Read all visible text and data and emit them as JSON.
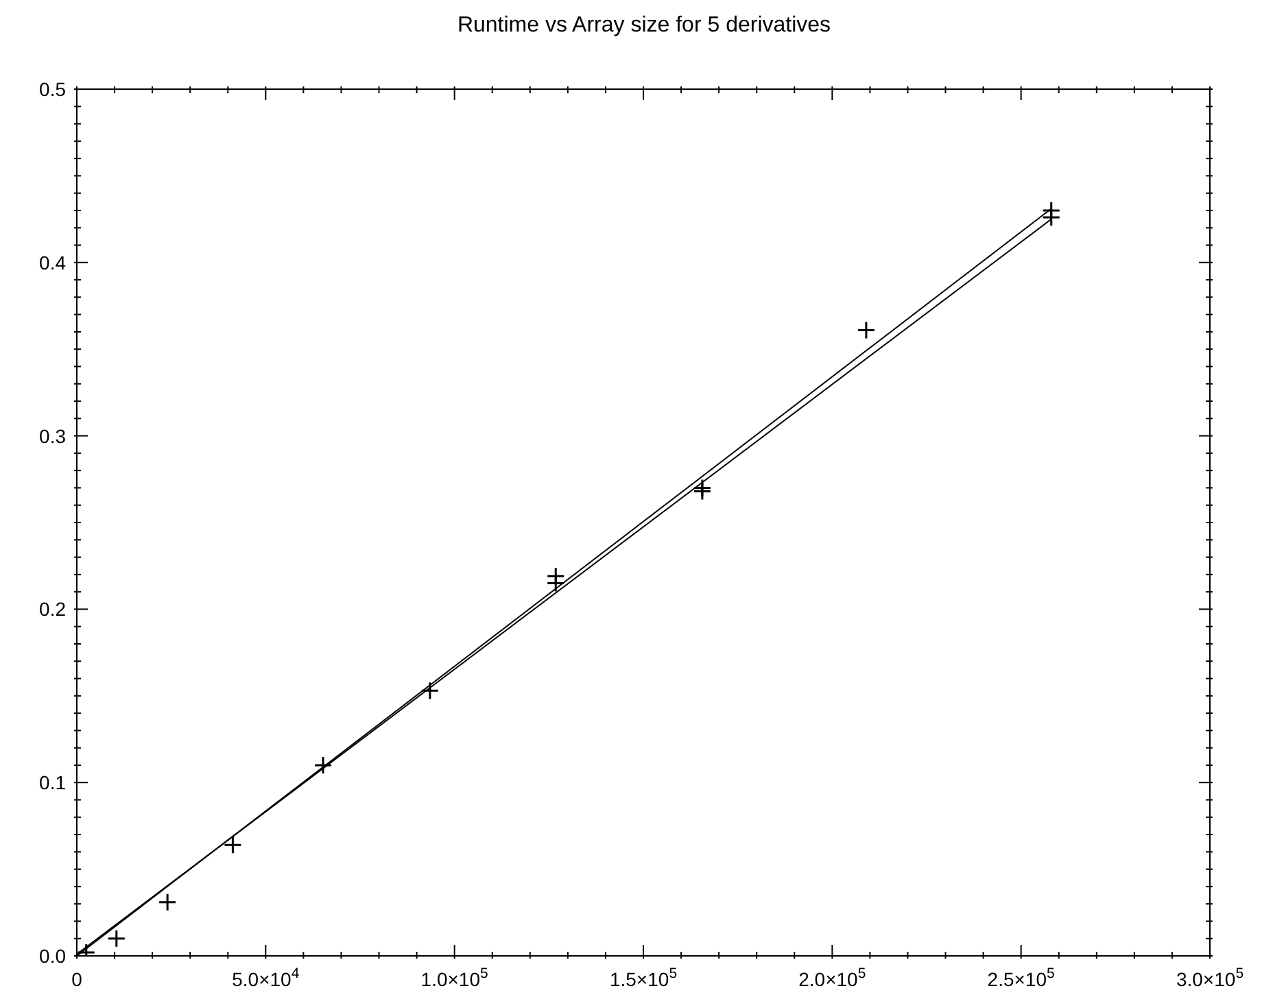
{
  "chart_data": {
    "type": "scatter",
    "title": "Runtime vs Array size for 5 derivatives",
    "xlim": [
      0,
      300000
    ],
    "xticks": [
      {
        "value": 0,
        "label": "0"
      },
      {
        "value": 10000,
        "label": null
      },
      {
        "value": 20000,
        "label": null
      },
      {
        "value": 30000,
        "label": null
      },
      {
        "value": 40000,
        "label": null
      },
      {
        "value": 50000,
        "label": "5.0×10$^{4}$"
      },
      {
        "value": 60000,
        "label": null
      },
      {
        "value": 70000,
        "label": null
      },
      {
        "value": 80000,
        "label": null
      },
      {
        "value": 90000,
        "label": null
      },
      {
        "value": 100000,
        "label": "1.0×10$^{5}$"
      },
      {
        "value": 110000,
        "label": null
      },
      {
        "value": 120000,
        "label": null
      },
      {
        "value": 130000,
        "label": null
      },
      {
        "value": 140000,
        "label": null
      },
      {
        "value": 150000,
        "label": "1.5×10$^{5}$"
      },
      {
        "value": 160000,
        "label": null
      },
      {
        "value": 170000,
        "label": null
      },
      {
        "value": 180000,
        "label": null
      },
      {
        "value": 190000,
        "label": null
      },
      {
        "value": 200000,
        "label": "2.0×10$^{5}$"
      },
      {
        "value": 210000,
        "label": null
      },
      {
        "value": 220000,
        "label": null
      },
      {
        "value": 230000,
        "label": null
      },
      {
        "value": 240000,
        "label": null
      },
      {
        "value": 250000,
        "label": "2.5×10$^{5}$"
      },
      {
        "value": 260000,
        "label": null
      },
      {
        "value": 270000,
        "label": null
      },
      {
        "value": 280000,
        "label": null
      },
      {
        "value": 290000,
        "label": null
      },
      {
        "value": 300000,
        "label": "3.0×10$^{5}$"
      }
    ],
    "ylim": [
      0,
      0.5
    ],
    "yticks": [
      {
        "value": 0,
        "label": "0.0"
      },
      {
        "value": 0.01,
        "label": null
      },
      {
        "value": 0.02,
        "label": null
      },
      {
        "value": 0.03,
        "label": null
      },
      {
        "value": 0.04,
        "label": null
      },
      {
        "value": 0.05,
        "label": null
      },
      {
        "value": 0.06,
        "label": null
      },
      {
        "value": 0.07,
        "label": null
      },
      {
        "value": 0.08,
        "label": null
      },
      {
        "value": 0.09,
        "label": null
      },
      {
        "value": 0.1,
        "label": "0.1"
      },
      {
        "value": 0.11,
        "label": null
      },
      {
        "value": 0.12,
        "label": null
      },
      {
        "value": 0.13,
        "label": null
      },
      {
        "value": 0.14,
        "label": null
      },
      {
        "value": 0.15,
        "label": null
      },
      {
        "value": 0.16,
        "label": null
      },
      {
        "value": 0.17,
        "label": null
      },
      {
        "value": 0.18,
        "label": null
      },
      {
        "value": 0.19,
        "label": null
      },
      {
        "value": 0.2,
        "label": "0.2"
      },
      {
        "value": 0.21,
        "label": null
      },
      {
        "value": 0.22,
        "label": null
      },
      {
        "value": 0.23,
        "label": null
      },
      {
        "value": 0.24,
        "label": null
      },
      {
        "value": 0.25,
        "label": null
      },
      {
        "value": 0.26,
        "label": null
      },
      {
        "value": 0.27,
        "label": null
      },
      {
        "value": 0.28,
        "label": null
      },
      {
        "value": 0.29,
        "label": null
      },
      {
        "value": 0.3,
        "label": "0.3"
      },
      {
        "value": 0.31,
        "label": null
      },
      {
        "value": 0.32,
        "label": null
      },
      {
        "value": 0.33,
        "label": null
      },
      {
        "value": 0.34,
        "label": null
      },
      {
        "value": 0.35,
        "label": null
      },
      {
        "value": 0.36,
        "label": null
      },
      {
        "value": 0.37,
        "label": null
      },
      {
        "value": 0.38,
        "label": null
      },
      {
        "value": 0.39,
        "label": null
      },
      {
        "value": 0.4,
        "label": "0.4"
      },
      {
        "value": 0.41,
        "label": null
      },
      {
        "value": 0.42,
        "label": null
      },
      {
        "value": 0.43,
        "label": null
      },
      {
        "value": 0.44,
        "label": null
      },
      {
        "value": 0.45,
        "label": null
      },
      {
        "value": 0.46,
        "label": null
      },
      {
        "value": 0.47,
        "label": null
      },
      {
        "value": 0.48,
        "label": null
      },
      {
        "value": 0.49,
        "label": null
      },
      {
        "value": 0.5,
        "label": "0.5"
      }
    ],
    "series": [
      {
        "marker": "cross",
        "color": "#000000",
        "x": [
          2500,
          10500,
          24000,
          41300,
          65200,
          93500,
          126800,
          126800,
          165600,
          165600,
          209000,
          258000,
          258000
        ],
        "values": [
          0.002,
          0.01,
          0.031,
          0.064,
          0.11,
          0.153,
          0.215,
          0.219,
          0.27,
          0.268,
          0.361,
          0.43,
          0.426
        ]
      },
      {
        "type": "line",
        "color": "#000000",
        "x": [
          0,
          258000
        ],
        "values": [
          0,
          0.431
        ]
      },
      {
        "type": "line",
        "color": "#000000",
        "x": [
          0,
          258000
        ],
        "values": [
          0.001,
          0.425
        ]
      }
    ]
  }
}
